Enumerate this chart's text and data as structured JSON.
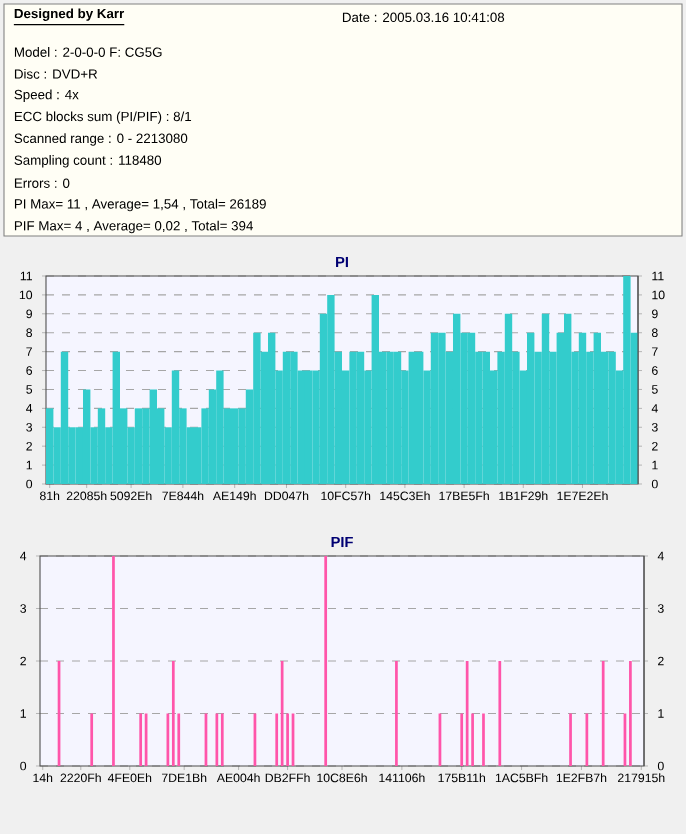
{
  "chart_data": [
    {
      "type": "bar",
      "title": "PI",
      "annotations": [
        "Designed by Karr",
        "Date : 2005.03.16 10:41:08",
        "Model : 2-0-0-0 F: CG5G",
        "Disc : DVD+R",
        "Speed : 4x",
        "ECC blocks sum (PI/PIF) : 8/1",
        "Scanned range : 0 - 2213080",
        "Sampling count : 118480",
        "Errors : 0",
        "PI Max= 11 , Average= 1,54 , Total= 26189",
        "PIF Max= 4 , Average= 0,02 , Total= 394"
      ],
      "categories": [
        "81h",
        null,
        null,
        null,
        null,
        "22085h",
        null,
        null,
        null,
        null,
        null,
        "5092Eh",
        null,
        null,
        null,
        null,
        null,
        null,
        "7E844h",
        null,
        null,
        null,
        null,
        null,
        null,
        "AE149h",
        null,
        null,
        null,
        null,
        null,
        null,
        "DD047h",
        null,
        null,
        null,
        null,
        null,
        null,
        null,
        "10FC57h",
        null,
        null,
        null,
        null,
        null,
        null,
        null,
        "145C3Eh",
        null,
        null,
        null,
        null,
        null,
        null,
        null,
        "17BE5Fh",
        null,
        null,
        null,
        null,
        null,
        null,
        null,
        "1B1F29h",
        null,
        null,
        null,
        null,
        null,
        null,
        null,
        "1E7E2Eh",
        null,
        null,
        null,
        null,
        null,
        null,
        null
      ],
      "values": [
        4,
        3,
        7,
        3,
        3,
        5,
        3,
        4,
        3,
        7,
        4,
        3,
        4,
        4,
        5,
        4,
        3,
        6,
        4,
        3,
        3,
        4,
        5,
        6,
        4,
        4,
        4,
        5,
        8,
        7,
        8,
        6,
        7,
        7,
        6,
        6,
        6,
        9,
        10,
        7,
        6,
        7,
        7,
        6,
        10,
        7,
        7,
        7,
        6,
        7,
        7,
        6,
        8,
        8,
        7,
        9,
        8,
        8,
        7,
        7,
        6,
        7,
        9,
        7,
        6,
        8,
        7,
        9,
        7,
        8,
        9,
        7,
        8,
        7,
        8,
        7,
        7,
        6,
        11,
        8
      ],
      "color": "#33cccc",
      "ylim": [
        0,
        11
      ],
      "yticks": [
        0,
        1,
        2,
        3,
        4,
        5,
        6,
        7,
        8,
        9,
        10,
        11
      ],
      "y2lim": [
        0,
        11
      ],
      "y2ticks": [
        0,
        1,
        2,
        3,
        4,
        5,
        6,
        7,
        8,
        9,
        10,
        11
      ],
      "grid": "y"
    },
    {
      "type": "bar",
      "title": "PIF",
      "categories": [
        "14h",
        null,
        null,
        null,
        null,
        null,
        null,
        "2220Fh",
        null,
        null,
        null,
        null,
        null,
        null,
        null,
        null,
        "4FE0Eh",
        null,
        null,
        null,
        null,
        null,
        null,
        null,
        null,
        null,
        "7DE1Bh",
        null,
        null,
        null,
        null,
        null,
        null,
        null,
        null,
        null,
        "AE004h",
        null,
        null,
        null,
        null,
        null,
        null,
        null,
        null,
        "DB2FFh",
        null,
        null,
        null,
        null,
        null,
        null,
        null,
        null,
        null,
        "10C8E6h",
        null,
        null,
        null,
        null,
        null,
        null,
        null,
        null,
        null,
        null,
        "141106h",
        null,
        null,
        null,
        null,
        null,
        null,
        null,
        null,
        null,
        null,
        "175B11h",
        null,
        null,
        null,
        null,
        null,
        null,
        null,
        null,
        null,
        null,
        "1AC5BFh",
        null,
        null,
        null,
        null,
        null,
        null,
        null,
        null,
        null,
        null,
        "1E2FB7h",
        null,
        null,
        null,
        null,
        null,
        null,
        null,
        null,
        null,
        null,
        "217915h"
      ],
      "values": [
        0,
        0,
        0,
        2,
        0,
        0,
        0,
        0,
        0,
        1,
        0,
        0,
        0,
        4,
        0,
        0,
        0,
        0,
        1,
        1,
        0,
        0,
        0,
        1,
        2,
        1,
        0,
        0,
        0,
        0,
        1,
        0,
        1,
        1,
        0,
        0,
        0,
        0,
        0,
        1,
        0,
        0,
        0,
        1,
        2,
        1,
        1,
        0,
        0,
        0,
        0,
        0,
        4,
        0,
        0,
        0,
        0,
        0,
        0,
        0,
        0,
        0,
        0,
        0,
        0,
        2,
        0,
        0,
        0,
        0,
        0,
        0,
        0,
        1,
        0,
        0,
        0,
        1,
        2,
        1,
        0,
        1,
        0,
        0,
        2,
        0,
        0,
        0,
        0,
        0,
        0,
        0,
        0,
        0,
        0,
        0,
        0,
        1,
        0,
        0,
        1,
        0,
        0,
        2,
        0,
        0,
        0,
        1,
        2,
        0,
        0
      ],
      "color": "#ff55aa",
      "ylim": [
        0,
        4
      ],
      "yticks": [
        0,
        1,
        2,
        3,
        4
      ],
      "y2lim": [
        0,
        4
      ],
      "y2ticks": [
        0,
        1,
        2,
        3,
        4
      ],
      "grid": "y"
    }
  ]
}
